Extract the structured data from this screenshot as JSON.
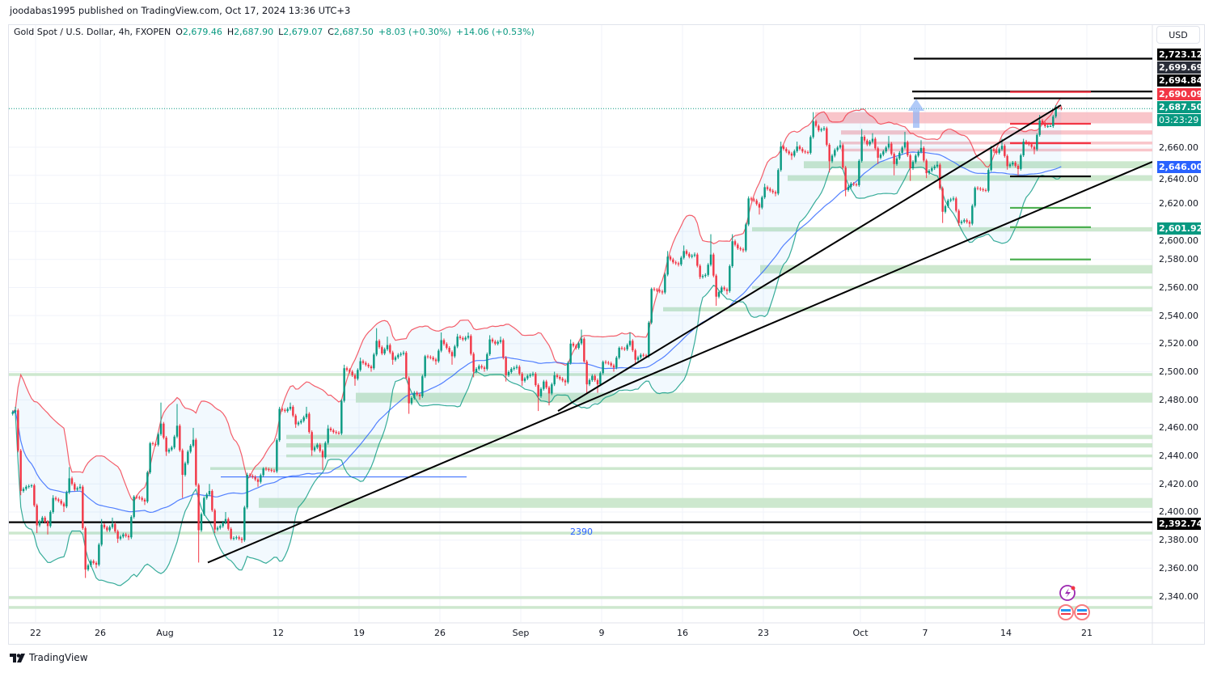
{
  "publisher_line": "joodabas1995 published on TradingView.com, Oct 17, 2024 13:36 UTC+3",
  "legend": {
    "symbol": "Gold Spot / U.S. Dollar, 4h, FXOPEN",
    "o_label": "O",
    "o": "2,679.46",
    "h_label": "H",
    "h": "2,687.90",
    "l_label": "L",
    "l": "2,679.07",
    "c_label": "C",
    "c": "2,687.50",
    "change": "+8.03 (+0.30%)",
    "change2": "+14.06 (+0.53%)"
  },
  "currency": "USD",
  "brand": "TradingView",
  "price_labels": [
    {
      "text": "2,723.12",
      "color": "#000000"
    },
    {
      "text": "2,699.69",
      "color": "#2a2e39"
    },
    {
      "text": "2,694.84",
      "color": "#000000"
    },
    {
      "text": "2,690.09",
      "color": "#f23645"
    },
    {
      "text": "2,687.50",
      "color": "#089981"
    },
    {
      "text": "03:23:29",
      "color": "#089981"
    },
    {
      "text": "2,646.00",
      "color": "#2962ff"
    },
    {
      "text": "2,601.92",
      "color": "#089981"
    },
    {
      "text": "2,392.74",
      "color": "#000000"
    }
  ],
  "line_label_2390": "2390",
  "colors": {
    "up": "#089981",
    "down": "#f23645",
    "upper_band": "#f23645",
    "lower_band": "#089981",
    "ma": "#2962ff",
    "green_zone": "#c8e6c9",
    "red_zone": "#f8bfc4"
  },
  "chart_data": {
    "type": "candlestick",
    "title": "Gold Spot / U.S. Dollar, 4h, FXOPEN",
    "ylim": [
      2320,
      2740
    ],
    "y_ticks": [
      2340,
      2360,
      2380,
      2400,
      2420,
      2440,
      2460,
      2480,
      2500,
      2520,
      2540,
      2560,
      2580,
      2600,
      2620,
      2640,
      2660
    ],
    "y_tick_labels": [
      "2,340.00",
      "2,360.00",
      "2,380.00",
      "2,400.00",
      "2,420.00",
      "2,440.00",
      "2,460.00",
      "2,480.00",
      "2,500.00",
      "2,520.00",
      "2,540.00",
      "2,560.00",
      "2,580.00",
      "2,600.00",
      "2,620.00",
      "2,640.00",
      "2,660.00"
    ],
    "x_ticks": [
      {
        "label": "22",
        "day": 0
      },
      {
        "label": "26",
        "day": 4
      },
      {
        "label": "Aug",
        "day": 8
      },
      {
        "label": "12",
        "day": 15
      },
      {
        "label": "19",
        "day": 20
      },
      {
        "label": "26",
        "day": 25
      },
      {
        "label": "Sep",
        "day": 30
      },
      {
        "label": "9",
        "day": 35
      },
      {
        "label": "16",
        "day": 40
      },
      {
        "label": "23",
        "day": 45
      },
      {
        "label": "Oct",
        "day": 51
      },
      {
        "label": "7",
        "day": 55
      },
      {
        "label": "14",
        "day": 60
      },
      {
        "label": "21",
        "day": 65
      }
    ],
    "first_day_index": -1,
    "days": [
      [
        "Jul 19",
        2470,
        2475,
        2412,
        2418
      ],
      [
        "Jul 22",
        2418,
        2420,
        2385,
        2396
      ],
      [
        "Jul 23",
        2396,
        2412,
        2384,
        2408
      ],
      [
        "Jul 24",
        2408,
        2432,
        2400,
        2416
      ],
      [
        "Jul 25",
        2416,
        2420,
        2353,
        2365
      ],
      [
        "Jul 26",
        2365,
        2395,
        2360,
        2387
      ],
      [
        "Jul 29",
        2387,
        2396,
        2378,
        2384
      ],
      [
        "Jul 30",
        2384,
        2412,
        2380,
        2410
      ],
      [
        "Jul 31",
        2410,
        2450,
        2405,
        2448
      ],
      [
        "Aug 1",
        2448,
        2478,
        2440,
        2446
      ],
      [
        "Aug 2",
        2446,
        2477,
        2410,
        2443
      ],
      [
        "Aug 5",
        2443,
        2460,
        2364,
        2410
      ],
      [
        "Aug 6",
        2410,
        2420,
        2385,
        2390
      ],
      [
        "Aug 7",
        2390,
        2400,
        2380,
        2382
      ],
      [
        "Aug 8",
        2382,
        2428,
        2378,
        2425
      ],
      [
        "Aug 9",
        2425,
        2432,
        2418,
        2430
      ],
      [
        "Aug 12",
        2430,
        2475,
        2428,
        2472
      ],
      [
        "Aug 13",
        2472,
        2478,
        2460,
        2465
      ],
      [
        "Aug 14",
        2465,
        2475,
        2440,
        2448
      ],
      [
        "Aug 15",
        2448,
        2462,
        2430,
        2457
      ],
      [
        "Aug 16",
        2457,
        2505,
        2455,
        2500
      ],
      [
        "Aug 19",
        2500,
        2510,
        2490,
        2505
      ],
      [
        "Aug 20",
        2505,
        2531,
        2500,
        2513
      ],
      [
        "Aug 21",
        2513,
        2525,
        2505,
        2512
      ],
      [
        "Aug 22",
        2512,
        2515,
        2470,
        2485
      ],
      [
        "Aug 23",
        2485,
        2512,
        2480,
        2510
      ],
      [
        "Aug 26",
        2510,
        2528,
        2505,
        2517
      ],
      [
        "Aug 27",
        2517,
        2527,
        2505,
        2523
      ],
      [
        "Aug 28",
        2523,
        2528,
        2496,
        2504
      ],
      [
        "Aug 29",
        2504,
        2526,
        2500,
        2520
      ],
      [
        "Aug 30",
        2520,
        2525,
        2493,
        2502
      ],
      [
        "Sep 2",
        2502,
        2505,
        2490,
        2497
      ],
      [
        "Sep 3",
        2497,
        2500,
        2472,
        2493
      ],
      [
        "Sep 4",
        2493,
        2500,
        2476,
        2495
      ],
      [
        "Sep 5",
        2495,
        2523,
        2490,
        2517
      ],
      [
        "Sep 6",
        2517,
        2530,
        2485,
        2497
      ],
      [
        "Sep 9",
        2497,
        2508,
        2485,
        2506
      ],
      [
        "Sep 10",
        2506,
        2518,
        2500,
        2516
      ],
      [
        "Sep 11",
        2516,
        2528,
        2505,
        2512
      ],
      [
        "Sep 12",
        2512,
        2560,
        2510,
        2558
      ],
      [
        "Sep 13",
        2558,
        2586,
        2555,
        2578
      ],
      [
        "Sep 16",
        2578,
        2590,
        2575,
        2582
      ],
      [
        "Sep 17",
        2582,
        2585,
        2566,
        2569
      ],
      [
        "Sep 18",
        2569,
        2598,
        2547,
        2560
      ],
      [
        "Sep 19",
        2560,
        2598,
        2555,
        2588
      ],
      [
        "Sep 20",
        2588,
        2625,
        2585,
        2622
      ],
      [
        "Sep 23",
        2622,
        2634,
        2612,
        2629
      ],
      [
        "Sep 24",
        2629,
        2664,
        2625,
        2657
      ],
      [
        "Sep 25",
        2657,
        2664,
        2651,
        2657
      ],
      [
        "Sep 26",
        2657,
        2685,
        2655,
        2672
      ],
      [
        "Sep 27",
        2672,
        2675,
        2642,
        2658
      ],
      [
        "Sep 30",
        2658,
        2665,
        2625,
        2634
      ],
      [
        "Oct 1",
        2634,
        2673,
        2632,
        2662
      ],
      [
        "Oct 2",
        2662,
        2670,
        2648,
        2657
      ],
      [
        "Oct 3",
        2657,
        2668,
        2640,
        2656
      ],
      [
        "Oct 4",
        2656,
        2671,
        2636,
        2654
      ],
      [
        "Oct 7",
        2654,
        2665,
        2638,
        2645
      ],
      [
        "Oct 8",
        2645,
        2650,
        2606,
        2622
      ],
      [
        "Oct 9",
        2622,
        2625,
        2604,
        2608
      ],
      [
        "Oct 10",
        2608,
        2632,
        2603,
        2630
      ],
      [
        "Oct 11",
        2630,
        2661,
        2628,
        2656
      ],
      [
        "Oct 14",
        2656,
        2666,
        2644,
        2649
      ],
      [
        "Oct 15",
        2649,
        2666,
        2640,
        2662
      ],
      [
        "Oct 16",
        2662,
        2683,
        2655,
        2675
      ],
      [
        "Oct 17",
        2675,
        2690,
        2675,
        2687.5
      ]
    ],
    "indicators": {
      "bollinger": {
        "period": 20,
        "stddev": 2
      },
      "ma": {
        "type": "SMA",
        "period": 50
      }
    },
    "zones": [
      {
        "lo": 2677,
        "hi": 2685,
        "kind": "red",
        "from_day": 48.2
      },
      {
        "lo": 2669,
        "hi": 2672,
        "kind": "red",
        "from_day": 49.8
      },
      {
        "lo": 2662,
        "hi": 2664,
        "kind": "red",
        "from_day": 49.8
      },
      {
        "lo": 2657,
        "hi": 2659,
        "kind": "red",
        "from_day": 49.8
      },
      {
        "lo": 2645,
        "hi": 2650,
        "kind": "green",
        "from_day": 47.5
      },
      {
        "lo": 2636,
        "hi": 2640,
        "kind": "green",
        "from_day": 46.5
      },
      {
        "lo": 2600,
        "hi": 2603,
        "kind": "green",
        "from_day": 44.3
      },
      {
        "lo": 2570,
        "hi": 2576,
        "kind": "green",
        "from_day": 44.8
      },
      {
        "lo": 2559,
        "hi": 2561,
        "kind": "green",
        "from_day": 44.3
      },
      {
        "lo": 2543,
        "hi": 2546,
        "kind": "green",
        "from_day": 38.8
      },
      {
        "lo": 2497,
        "hi": 2499,
        "kind": "green",
        "from_day": -1.7
      },
      {
        "lo": 2478,
        "hi": 2485,
        "kind": "green",
        "from_day": 19.8
      },
      {
        "lo": 2452,
        "hi": 2455,
        "kind": "green",
        "from_day": 15.5
      },
      {
        "lo": 2446,
        "hi": 2449,
        "kind": "green",
        "from_day": 15.5
      },
      {
        "lo": 2439,
        "hi": 2441,
        "kind": "green",
        "from_day": 15.5
      },
      {
        "lo": 2430,
        "hi": 2432,
        "kind": "green",
        "from_day": 10.8
      },
      {
        "lo": 2403,
        "hi": 2410,
        "kind": "green",
        "from_day": 13.8
      },
      {
        "lo": 2384,
        "hi": 2386,
        "kind": "green",
        "from_day": -1.7
      },
      {
        "lo": 2338,
        "hi": 2340,
        "kind": "green",
        "from_day": -1.7
      },
      {
        "lo": 2331,
        "hi": 2333,
        "kind": "green",
        "from_day": -1.7
      }
    ],
    "hlines": [
      {
        "price": 2723.12,
        "color": "#000000",
        "from_day": 54.3,
        "to_day": 69.1
      },
      {
        "price": 2699.69,
        "color": "#000000",
        "from_day": 54.2,
        "to_day": 69.1
      },
      {
        "price": 2694.84,
        "color": "#000000",
        "from_day": 54.3,
        "to_day": 69.1
      },
      {
        "price": 2392.74,
        "color": "#000000",
        "from_day": -1.7,
        "to_day": 69.1
      },
      {
        "price": 2425,
        "color": "#2962ff",
        "from_day": 11.45,
        "to_day": 26.65
      },
      {
        "price": 2699.4,
        "color": "#f23645",
        "from_day": 60.25,
        "to_day": 65.25
      },
      {
        "price": 2676.7,
        "color": "#f23645",
        "from_day": 60.25,
        "to_day": 65.25
      },
      {
        "price": 2662.9,
        "color": "#f23645",
        "from_day": 60.25,
        "to_day": 65.25
      },
      {
        "price": 2639.2,
        "color": "#000000",
        "from_day": 60.25,
        "to_day": 65.25
      },
      {
        "price": 2616.8,
        "color": "#4caf50",
        "from_day": 60.25,
        "to_day": 65.25
      },
      {
        "price": 2603,
        "color": "#4caf50",
        "from_day": 60.25,
        "to_day": 65.25
      },
      {
        "price": 2580,
        "color": "#4caf50",
        "from_day": 60.25,
        "to_day": 65.25
      }
    ],
    "trendlines": [
      {
        "from": {
          "day": 10.65,
          "price": 2364
        },
        "to": {
          "day": 69.05,
          "price": 2649.6
        }
      },
      {
        "from": {
          "day": 32.3,
          "price": 2472
        },
        "to": {
          "day": 63.4,
          "price": 2690
        }
      }
    ],
    "last_price": 2687.5
  }
}
